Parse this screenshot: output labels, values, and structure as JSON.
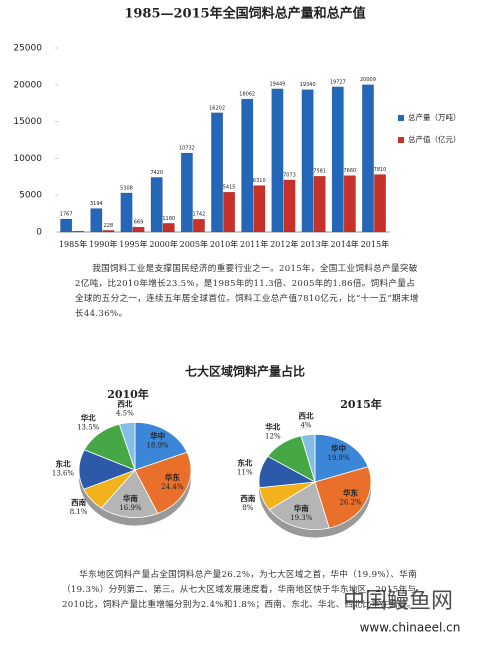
{
  "chart_data": [
    {
      "type": "bar",
      "title": "1985—2015年全国饲料总产量和总产值",
      "categories": [
        "1985年",
        "1990年",
        "1995年",
        "2000年",
        "2005年",
        "2010年",
        "2011年",
        "2012年",
        "2013年",
        "2014年",
        "2015年"
      ],
      "series": [
        {
          "name": "总产量（万吨）",
          "color": "#2467b8",
          "values": [
            1767,
            3194,
            5308,
            7420,
            10732,
            16202,
            18062,
            19449,
            19340,
            19727,
            20009
          ]
        },
        {
          "name": "总产值（亿元）",
          "color": "#c8302a",
          "values": [
            120,
            228,
            669,
            1180,
            1742,
            5415,
            6310,
            7073,
            7581,
            7660,
            7810
          ],
          "value_labels": [
            null,
            "228",
            "669",
            "1180",
            "1742",
            "5415",
            "6310",
            "7073",
            "7581",
            "7660",
            "7810"
          ]
        }
      ],
      "ylim": [
        0,
        25000
      ],
      "yticks": [
        0,
        5000,
        10000,
        15000,
        20000,
        25000
      ],
      "legend": "right"
    },
    {
      "type": "pie",
      "title": "七大区域饲料产量占比",
      "subtitle": "2010年",
      "categories": [
        "华中",
        "华东",
        "华南",
        "西南",
        "东北",
        "华北",
        "西北"
      ],
      "colors": [
        "#3b86d6",
        "#e8702a",
        "#b5b5b5",
        "#f2b21b",
        "#2c5aa8",
        "#45a845",
        "#86bde6"
      ],
      "values": [
        18.9,
        24.4,
        16.9,
        8.1,
        13.6,
        13.5,
        4.5
      ],
      "value_labels": [
        "18.9%",
        "24.4%",
        "16.9%",
        "8.1%",
        "13.6%",
        "13.5%",
        "4.5%"
      ]
    },
    {
      "type": "pie",
      "subtitle": "2015年",
      "categories": [
        "华中",
        "华东",
        "华南",
        "西南",
        "东北",
        "华北",
        "西北"
      ],
      "colors": [
        "#3b86d6",
        "#e8702a",
        "#b5b5b5",
        "#f2b21b",
        "#2c5aa8",
        "#45a845",
        "#86bde6"
      ],
      "values": [
        19.9,
        26.2,
        19.3,
        8,
        11,
        12,
        4
      ],
      "value_labels": [
        "19.9%",
        "26.2%",
        "19.3%",
        "8%",
        "11%",
        "12%",
        "4%"
      ]
    }
  ],
  "paragraphs": [
    "我国饲料工业是支撑国民经济的重要行业之一。2015年，全国工业饲料总产量突破2亿吨，比2010年增长23.5%，是1985年的11.3倍、2005年的1.86倍。饲料产量占全球的五分之一，连续五年居全球首位。饲料工业总产值7810亿元，比“十一五”期末增长44.36%。",
    "华东地区饲料产量占全国饲料总产量26.2%，为七大区域之首，华中（19.9%）、华南（19.3%）分列第二、第三。从七大区域发展速度看，华南地区快于华东地区，2015年与2010比，饲料产量比重增幅分别为2.4%和1.8%；西南、东北、华北、西北比重在缩减。"
  ],
  "watermark": {
    "name": "中国鳗鱼网",
    "url": "www.chinaeel.cn"
  }
}
